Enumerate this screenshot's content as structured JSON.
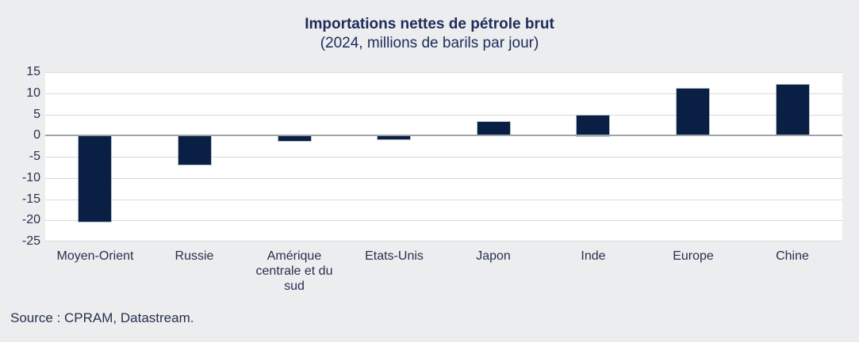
{
  "header": {
    "title": "Importations nettes de pétrole brut",
    "subtitle": "(2024, millions de barils par jour)"
  },
  "source_note": "Source : CPRAM, Datastream.",
  "colors": {
    "background": "#ECEDEF",
    "plot_background": "#FFFFFF",
    "bar": "#0A1F44",
    "gridline": "#D9D9D9",
    "zero_line": "#9FA4AA",
    "text": "#1E2C5A"
  },
  "chart_data": {
    "type": "bar",
    "title": "Importations nettes de pétrole brut",
    "subtitle": "(2024, millions de barils par jour)",
    "categories": [
      "Moyen-Orient",
      "Russie",
      "Amérique centrale et du sud",
      "Etats-Unis",
      "Japon",
      "Inde",
      "Europe",
      "Chine"
    ],
    "values": [
      -20.3,
      -7,
      -1.3,
      -0.9,
      3.2,
      4.8,
      11,
      12
    ],
    "unit": "millions de barils par jour",
    "year": "2024",
    "xlabel": "",
    "ylabel": "",
    "ylim": [
      -25,
      15
    ],
    "yticks": [
      15,
      10,
      5,
      0,
      -5,
      -10,
      -15,
      -20,
      -25
    ],
    "grid": true,
    "legend": false,
    "bar_color": "#0A1F44"
  }
}
